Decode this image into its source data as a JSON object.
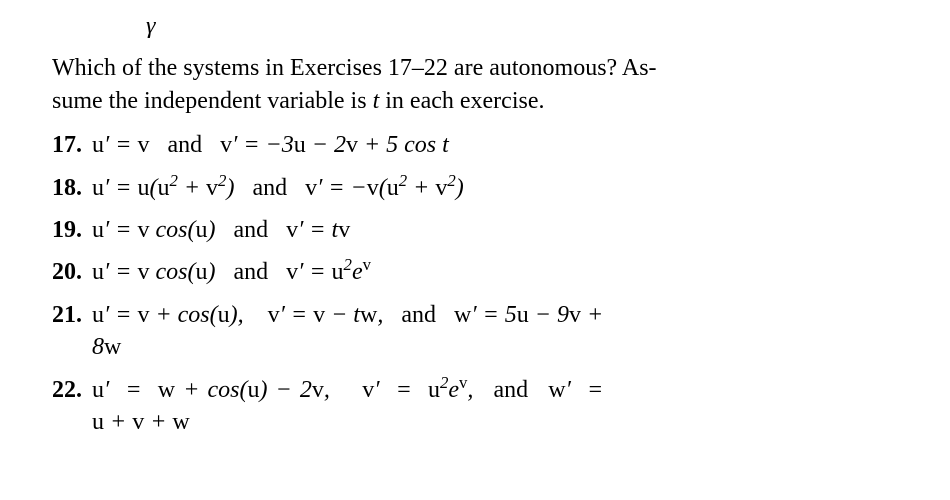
{
  "colors": {
    "background": "#ffffff",
    "text": "#000000"
  },
  "typography": {
    "family": "Times New Roman",
    "body_size_pt": 18,
    "bold_numbers": true
  },
  "gamma": "γ",
  "intro": {
    "line1": "Which of the systems in Exercises 17–22 are autonomous? As-",
    "line2_a": "sume the independent variable is ",
    "line2_var": "t",
    "line2_b": " in each exercise."
  },
  "and": "and",
  "exercises": [
    {
      "num": "17.",
      "eq1": "u′ = v",
      "eq2": "v′ = −3u − 2v + 5 cos t"
    },
    {
      "num": "18.",
      "eq1": "u′ = u(u² + v²)",
      "eq2": "v′ = −v(u² + v²)"
    },
    {
      "num": "19.",
      "eq1": "u′ = v cos(u)",
      "eq2": "v′ = tv"
    },
    {
      "num": "20.",
      "eq1": "u′ = v cos(u)",
      "eq2": "v′ = u²eᵛ"
    },
    {
      "num": "21.",
      "eq1": "u′ = v + cos(u),",
      "eq2": "v′ = v − tw,",
      "eq3": "w′ = 5u − 9v +",
      "cont": "8w"
    },
    {
      "num": "22.",
      "eq1": "u′  =  w + cos(u) − 2v,",
      "eq2": "v′  =  u²eᵛ,",
      "eq3": "w′  =",
      "cont": "u + v + w"
    }
  ]
}
